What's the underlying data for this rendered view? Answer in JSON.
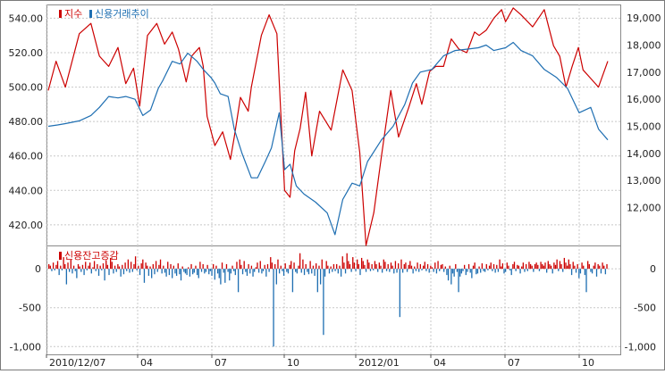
{
  "chart_data": [
    {
      "type": "line",
      "panel": "upper",
      "legend": [
        {
          "name": "지수",
          "color": "#cc0000"
        },
        {
          "name": "신용거래추이",
          "color": "#1f6fb2"
        }
      ],
      "x_tick_labels": [
        "2010/12/07",
        "04",
        "07",
        "10",
        "2012/01",
        "04",
        "07",
        "10"
      ],
      "left_axis": {
        "ticks": [
          "540.00",
          "520.00",
          "500.00",
          "480.00",
          "460.00",
          "440.00",
          "420.00"
        ],
        "ylim": [
          408,
          548
        ]
      },
      "right_axis": {
        "ticks": [
          "19,000",
          "18,000",
          "17,000",
          "16,000",
          "15,000",
          "14,000",
          "13,000",
          "12,000"
        ],
        "ylim": [
          10600,
          19500
        ]
      },
      "series": [
        {
          "name": "지수",
          "axis": "left",
          "color": "#cc0000",
          "x": [
            0,
            10,
            22,
            40,
            55,
            66,
            78,
            90,
            100,
            110,
            118,
            128,
            140,
            150,
            160,
            168,
            178,
            185,
            195,
            200,
            205,
            215,
            225,
            235,
            240,
            248,
            258,
            262,
            268,
            275,
            285,
            295,
            305,
            312,
            318,
            325,
            332,
            340,
            350,
            365,
            380,
            392,
            402,
            410,
            420,
            430,
            442,
            452,
            465,
            475,
            482,
            492,
            500,
            510,
            520,
            530,
            540,
            550,
            556,
            565,
            575,
            585,
            590,
            600,
            610,
            625,
            640,
            652,
            660,
            668,
            676,
            684,
            690,
            700,
            710,
            722
          ],
          "values": [
            498,
            515,
            500,
            531,
            537,
            518,
            512,
            523,
            502,
            511,
            489,
            530,
            537,
            525,
            532,
            522,
            503,
            518,
            523,
            512,
            483,
            466,
            474,
            458,
            471,
            494,
            486,
            500,
            514,
            530,
            542,
            531,
            440,
            436,
            463,
            476,
            497,
            460,
            486,
            475,
            510,
            498,
            462,
            408,
            427,
            460,
            498,
            471,
            488,
            502,
            490,
            509,
            512,
            512,
            528,
            522,
            520,
            532,
            530,
            533,
            540,
            545,
            538,
            546,
            542,
            535,
            545,
            524,
            518,
            500,
            512,
            523,
            510,
            505,
            500,
            515
          ]
        },
        {
          "name": "신용거래추이",
          "axis": "right",
          "color": "#1f6fb2",
          "x": [
            0,
            12,
            22,
            40,
            55,
            66,
            78,
            90,
            100,
            112,
            122,
            132,
            142,
            148,
            160,
            170,
            180,
            192,
            200,
            210,
            215,
            222,
            232,
            240,
            250,
            262,
            270,
            280,
            288,
            298,
            305,
            312,
            320,
            330,
            345,
            360,
            370,
            380,
            392,
            402,
            412,
            430,
            445,
            460,
            470,
            480,
            495,
            510,
            525,
            540,
            555,
            565,
            575,
            590,
            600,
            610,
            625,
            640,
            656,
            670,
            685,
            700,
            710,
            722
          ],
          "values": [
            15000,
            15050,
            15100,
            15200,
            15400,
            15700,
            16100,
            16050,
            16100,
            16000,
            15400,
            15600,
            16400,
            16700,
            17400,
            17300,
            17700,
            17400,
            17100,
            16800,
            16600,
            16200,
            16100,
            14900,
            14000,
            13100,
            13100,
            13700,
            14200,
            15500,
            13400,
            13600,
            12800,
            12500,
            12200,
            11800,
            11000,
            12300,
            12900,
            12800,
            13700,
            14500,
            15000,
            15800,
            16600,
            17000,
            17100,
            17600,
            17800,
            17850,
            17900,
            18000,
            17800,
            17900,
            18100,
            17800,
            17600,
            17100,
            16800,
            16400,
            15500,
            15700,
            14900,
            14500
          ]
        }
      ]
    },
    {
      "type": "bar",
      "panel": "lower",
      "legend": [
        {
          "name": "신용잔고증감",
          "color": "#cc0000"
        }
      ],
      "x_tick_labels": [
        "2010/12/07",
        "04",
        "07",
        "10",
        "2012/01",
        "04",
        "07",
        "10"
      ],
      "left_axis": {
        "ticks": [
          "0",
          "-500",
          "-1,000"
        ],
        "ylim": [
          -1100,
          300
        ]
      },
      "right_axis": {
        "ticks": [
          "0",
          "-500",
          "-1,000"
        ],
        "ylim": [
          -1100,
          300
        ]
      },
      "positive_color": "#cc0000",
      "negative_color": "#1f6fb2",
      "values": [
        60,
        40,
        -30,
        80,
        -20,
        50,
        100,
        -80,
        40,
        -20,
        150,
        60,
        -200,
        80,
        -40,
        120,
        -60,
        40,
        -30,
        -120,
        60,
        30,
        -40,
        50,
        -80,
        90,
        -20,
        40,
        80,
        -60,
        20,
        100,
        -30,
        60,
        -90,
        40,
        -20,
        70,
        -150,
        110,
        50,
        -80,
        140,
        90,
        -60,
        40,
        -40,
        60,
        30,
        -100,
        50,
        -70,
        80,
        -30,
        120,
        -50,
        90,
        -40,
        60,
        160,
        -20,
        40,
        -80,
        70,
        120,
        -180,
        80,
        40,
        -90,
        30,
        -120,
        60,
        -70,
        100,
        -40,
        50,
        120,
        -60,
        40,
        -50,
        -100,
        90,
        -80,
        60,
        -120,
        40,
        -60,
        -90,
        70,
        -70,
        -150,
        30,
        -40,
        -60,
        -80,
        20,
        -100,
        60,
        -70,
        -50,
        40,
        -80,
        -120,
        90,
        -40,
        60,
        -60,
        -40,
        50,
        -70,
        -30,
        -90,
        60,
        -140,
        40,
        -60,
        -120,
        -200,
        80,
        -50,
        -180,
        60,
        -40,
        -150,
        -60,
        40,
        -30,
        -80,
        90,
        -300,
        120,
        50,
        -70,
        100,
        -40,
        -90,
        60,
        -60,
        40,
        -100,
        -40,
        20,
        80,
        -50,
        100,
        -60,
        -30,
        50,
        -100,
        60,
        -40,
        150,
        80,
        -1000,
        60,
        -200,
        120,
        -60,
        40,
        -30,
        -90,
        70,
        -40,
        -60,
        50,
        100,
        -300,
        80,
        -40,
        -60,
        40,
        200,
        -50,
        120,
        -80,
        60,
        -40,
        -70,
        100,
        -60,
        40,
        -90,
        70,
        -300,
        40,
        -200,
        120,
        -850,
        -100,
        100,
        40,
        -60,
        30,
        -40,
        60,
        -30,
        60,
        -60,
        40,
        -100,
        160,
        80,
        -60,
        200,
        100,
        60,
        -40,
        150,
        80,
        -30,
        120,
        60,
        -80,
        140,
        100,
        50,
        -40,
        120,
        80,
        -30,
        60,
        -20,
        100,
        60,
        -40,
        80,
        40,
        -50,
        120,
        90,
        -30,
        60,
        -40,
        80,
        40,
        -60,
        100,
        -50,
        70,
        -620,
        120,
        -50,
        60,
        80,
        -40,
        50,
        100,
        40,
        -60,
        30,
        -30,
        80,
        -40,
        60,
        -20,
        40,
        90,
        -30,
        60,
        -50,
        40,
        20,
        -40,
        80,
        -60,
        100,
        -30,
        50,
        60,
        -40,
        30,
        -80,
        -150,
        40,
        -200,
        -60,
        -100,
        60,
        -40,
        -300,
        -100,
        -60,
        -30,
        50,
        -80,
        -40,
        60,
        -50,
        -120,
        40,
        80,
        -70,
        -60,
        30,
        -50,
        70,
        -30,
        -40,
        60,
        -20,
        40,
        80,
        -30,
        60,
        -50,
        50,
        -40,
        120,
        30,
        70,
        -60,
        -40,
        80,
        40,
        -20,
        -80,
        60,
        90,
        -30,
        50,
        40,
        -60,
        30,
        80,
        -40,
        60,
        -30,
        90,
        60,
        40,
        -40,
        60,
        80,
        50,
        -30,
        90,
        60,
        40,
        80,
        -50,
        100,
        60,
        40,
        -60,
        80,
        50,
        120,
        -30,
        100,
        60,
        -40,
        140,
        80,
        40,
        120,
        60,
        -80,
        90,
        40,
        -50,
        60,
        -120,
        -60,
        80,
        40,
        -80,
        -300,
        100,
        60,
        -40,
        -60,
        40,
        80,
        -100,
        60,
        40,
        -60,
        80,
        40,
        -70,
        60
      ]
    }
  ]
}
